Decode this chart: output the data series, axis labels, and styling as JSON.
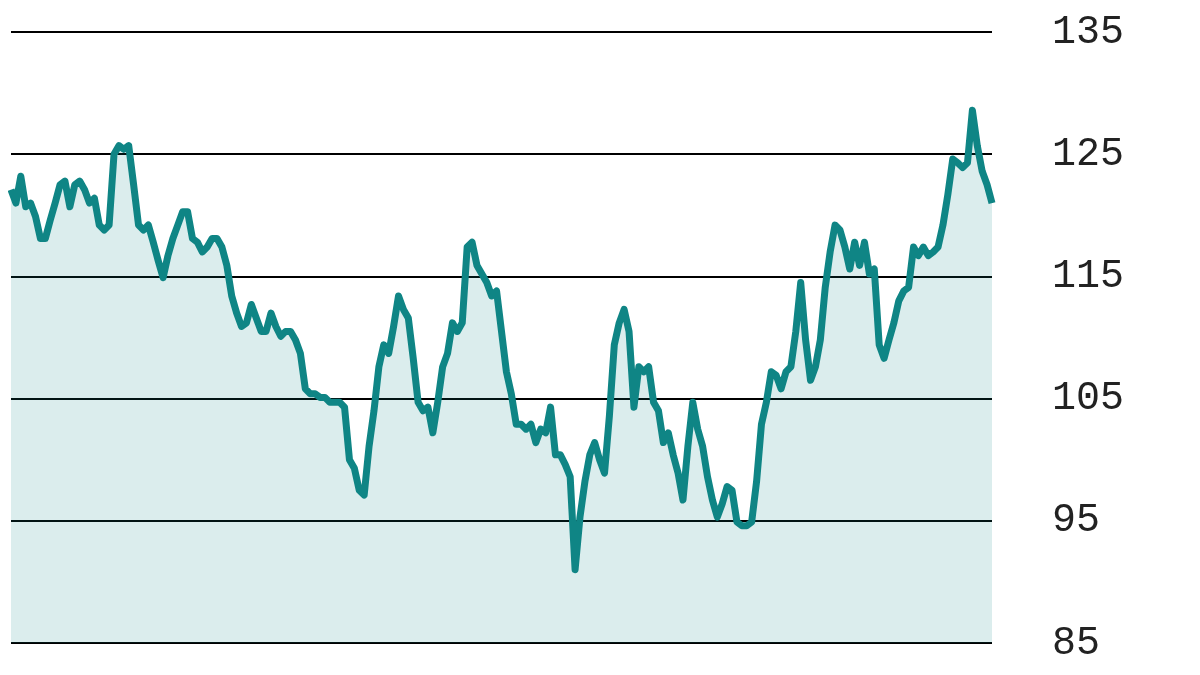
{
  "chart_data": {
    "type": "area",
    "categories": [
      null,
      null,
      null,
      null,
      null,
      null,
      null,
      null,
      null,
      null,
      null,
      null,
      null,
      null,
      null,
      null,
      null,
      null,
      null,
      null,
      null,
      null,
      null,
      null,
      null,
      null,
      null,
      null,
      null,
      null,
      null,
      null,
      null,
      null,
      null,
      null,
      null,
      null,
      null,
      null,
      null,
      null,
      null,
      null,
      null,
      null,
      null,
      null,
      null,
      null,
      null,
      null,
      null,
      null,
      null,
      null,
      null,
      null,
      null,
      null,
      null,
      null,
      null,
      null,
      null,
      null,
      null,
      null,
      null,
      null,
      null,
      null,
      null,
      null,
      null,
      null,
      null,
      null,
      null,
      null,
      null,
      null,
      null,
      null,
      null,
      null,
      null,
      null,
      null,
      null,
      null,
      null,
      null,
      null,
      null,
      null,
      null,
      null,
      null,
      null,
      null,
      null,
      null,
      null,
      null,
      null,
      null,
      null,
      null,
      null,
      null,
      null,
      null,
      null,
      null,
      null,
      null,
      null,
      null,
      null,
      null,
      null,
      null,
      null,
      null,
      null,
      null,
      null,
      null,
      null,
      null,
      null,
      null,
      null,
      null,
      null,
      null,
      null,
      null,
      null,
      null,
      null,
      null,
      null,
      null,
      null,
      null,
      null,
      null,
      null,
      null,
      null,
      null,
      null,
      null,
      null,
      null,
      null,
      null,
      null,
      null,
      null,
      null,
      null,
      null,
      null,
      null,
      null,
      null,
      null,
      null,
      null,
      null,
      null,
      null,
      null,
      null,
      null,
      null,
      null,
      null,
      null,
      null,
      null,
      null,
      null,
      null,
      null,
      null,
      null,
      null,
      null,
      null,
      null,
      null,
      null,
      null,
      null,
      null,
      null,
      null
    ],
    "series": [
      {
        "color": "#0f8585",
        "values": [
          122.1,
          121,
          123.2,
          120.7,
          121,
          119.9,
          118.1,
          118.1,
          119.6,
          121,
          122.5,
          122.8,
          120.7,
          122.5,
          122.8,
          122.1,
          121,
          121.4,
          119.2,
          118.8,
          119.2,
          125,
          125.7,
          125.4,
          125.7,
          122.5,
          119.2,
          118.8,
          119.2,
          117.8,
          116.3,
          114.9,
          116.7,
          118.1,
          119.2,
          120.3,
          120.3,
          118.1,
          117.8,
          117,
          117.4,
          118.1,
          118.1,
          117.4,
          115.9,
          113.4,
          112,
          110.9,
          111.2,
          112.7,
          111.6,
          110.5,
          110.5,
          112,
          110.9,
          110.1,
          110.5,
          110.5,
          109.8,
          108.7,
          105.8,
          105.4,
          105.4,
          105.1,
          105.1,
          104.7,
          104.7,
          104.7,
          104.3,
          100,
          99.3,
          97.5,
          97.1,
          101.1,
          104,
          107.6,
          109.4,
          108.7,
          110.9,
          113.4,
          112.3,
          111.6,
          108.3,
          104.7,
          104,
          104.3,
          102.2,
          104.7,
          107.6,
          108.7,
          111.2,
          110.5,
          111.2,
          117.4,
          117.8,
          115.9,
          115.2,
          114.5,
          113.4,
          113.8,
          110.5,
          107.2,
          105.4,
          102.9,
          102.9,
          102.5,
          102.9,
          101.4,
          102.5,
          102.2,
          104.3,
          100.4,
          100.4,
          99.6,
          98.6,
          91,
          95.3,
          98.2,
          100.4,
          101.4,
          100,
          98.9,
          103.6,
          109.4,
          111.2,
          112.3,
          110.5,
          104.3,
          107.6,
          107.2,
          107.6,
          104.7,
          104,
          101.4,
          102.2,
          100.4,
          98.9,
          96.7,
          101.1,
          104.7,
          102.5,
          101.1,
          98.6,
          96.7,
          95.3,
          96.4,
          97.8,
          97.5,
          94.9,
          94.6,
          94.6,
          94.9,
          98.2,
          102.9,
          104.7,
          107.2,
          106.9,
          105.8,
          107.2,
          107.6,
          110.5,
          114.5,
          109.8,
          106.5,
          107.6,
          109.8,
          114.1,
          117,
          119.2,
          118.8,
          117.4,
          115.6,
          117.8,
          115.9,
          117.8,
          115.2,
          115.6,
          109.4,
          108.3,
          109.8,
          111.2,
          113,
          113.8,
          114.1,
          117.4,
          116.7,
          117.4,
          116.7,
          117,
          117.4,
          119.2,
          121.7,
          124.6,
          124.3,
          123.9,
          124.3,
          128.6,
          125.7,
          123.6,
          122.5,
          121
        ]
      }
    ],
    "ylim": [
      85,
      135
    ],
    "yticks": [
      85,
      95,
      105,
      115,
      125,
      135
    ],
    "grid": "y"
  }
}
